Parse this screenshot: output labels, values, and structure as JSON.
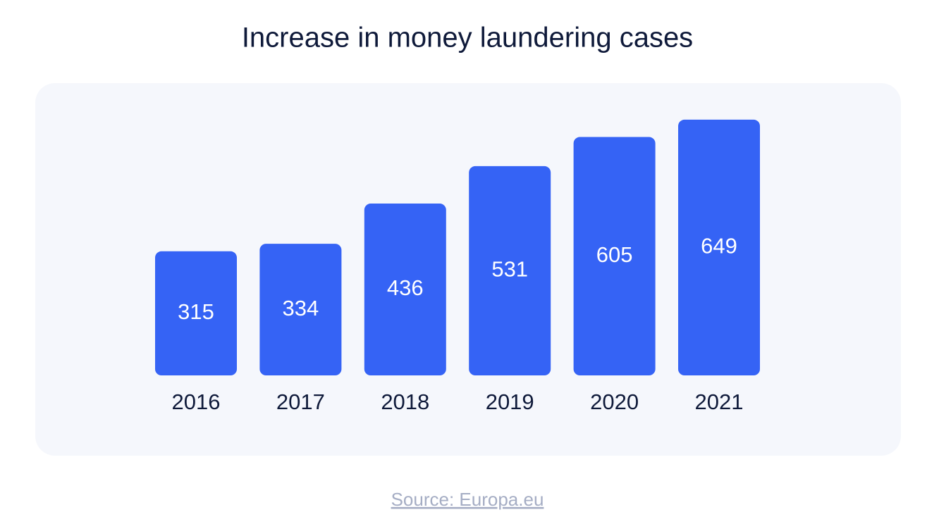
{
  "chart_data": {
    "type": "bar",
    "title": "Increase in money laundering cases",
    "categories": [
      "2016",
      "2017",
      "2018",
      "2019",
      "2020",
      "2021"
    ],
    "values": [
      315,
      334,
      436,
      531,
      605,
      649
    ],
    "color": "#3563f5",
    "source": "Source: Europa.eu"
  }
}
